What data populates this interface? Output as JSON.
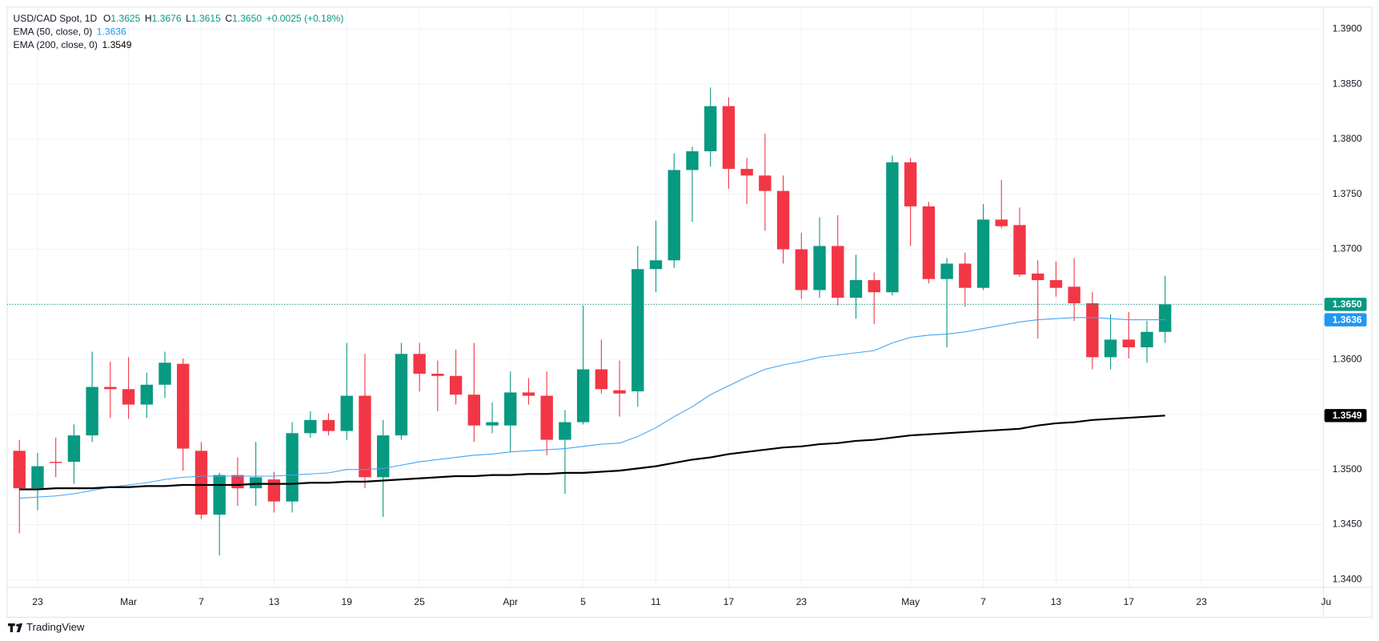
{
  "chart_data": {
    "type": "candlestick",
    "title": "USD/CAD Spot, 1D",
    "ohlc_header": [
      {
        "key": "O",
        "value": "1.3625"
      },
      {
        "key": "H",
        "value": "1.3676"
      },
      {
        "key": "L",
        "value": "1.3615"
      },
      {
        "key": "C",
        "value": "1.3650"
      }
    ],
    "change": "+0.0025 (+0.18%)",
    "up_color": "#089981",
    "down_color": "#f23645",
    "categories": [
      null,
      "23",
      null,
      null,
      null,
      null,
      "Mar",
      null,
      null,
      null,
      "7",
      null,
      null,
      null,
      "13",
      null,
      null,
      null,
      "19",
      null,
      null,
      null,
      "25",
      null,
      null,
      null,
      null,
      "Apr",
      null,
      null,
      null,
      "5",
      null,
      null,
      null,
      "11",
      null,
      null,
      null,
      "17",
      null,
      null,
      null,
      "23",
      null,
      null,
      null,
      null,
      null,
      "May",
      null,
      null,
      null,
      "7",
      null,
      null,
      null,
      "13",
      null,
      null,
      null,
      "17",
      null,
      null,
      null,
      "23",
      null,
      null,
      null,
      null,
      null,
      null,
      "Jun"
    ],
    "open": [
      1.3517,
      1.3483,
      1.3507,
      1.3507,
      1.3531,
      1.3575,
      1.3573,
      1.3559,
      1.3577,
      1.3596,
      1.3517,
      1.3459,
      1.3495,
      1.3483,
      1.3491,
      1.3471,
      1.3533,
      1.3545,
      1.3535,
      1.3567,
      1.3493,
      1.3531,
      1.3605,
      1.3587,
      1.3585,
      1.3568,
      1.354,
      1.354,
      1.357,
      1.3567,
      1.3527,
      1.3543,
      1.3591,
      1.3572,
      1.3571,
      1.3682,
      1.369,
      1.3772,
      1.3789,
      1.383,
      1.3773,
      1.3767,
      1.3753,
      1.37,
      1.3663,
      1.3703,
      1.3656,
      1.3672,
      1.3661,
      1.3779,
      1.3739,
      1.3673,
      1.3687,
      1.3665,
      1.3727,
      1.3722,
      1.3678,
      1.3672,
      1.3666,
      1.3651,
      1.3602,
      1.3618,
      1.3611,
      1.3625,
      null,
      null,
      null,
      null,
      null,
      null,
      null,
      null,
      null
    ],
    "high": [
      1.3527,
      1.3515,
      1.3529,
      1.3541,
      1.3607,
      1.3598,
      1.3602,
      1.3588,
      1.3607,
      1.3601,
      1.3525,
      1.3497,
      1.3511,
      1.3525,
      1.3498,
      1.3543,
      1.3553,
      1.3551,
      1.3615,
      1.3605,
      1.3545,
      1.3615,
      1.3615,
      1.3599,
      1.3609,
      1.3615,
      1.3561,
      1.3589,
      1.3583,
      1.3589,
      1.3554,
      1.3649,
      1.3618,
      1.3599,
      1.3703,
      1.3726,
      1.3787,
      1.3793,
      1.3847,
      1.3838,
      1.3783,
      1.3805,
      1.3767,
      1.3715,
      1.3729,
      1.3731,
      1.3695,
      1.3679,
      1.3785,
      1.3783,
      1.3743,
      1.3692,
      1.3697,
      1.3741,
      1.3763,
      1.3738,
      1.369,
      1.3689,
      1.3692,
      1.3661,
      1.3641,
      1.3643,
      1.3635,
      1.3676,
      null,
      null,
      null,
      null,
      null,
      null,
      null,
      null,
      null
    ],
    "low": [
      1.3442,
      1.3463,
      1.3493,
      1.3487,
      1.3525,
      1.3547,
      1.3546,
      1.3547,
      1.3565,
      1.3499,
      1.3455,
      1.3422,
      1.3467,
      1.3467,
      1.3461,
      1.3461,
      1.3529,
      1.3531,
      1.3527,
      1.3483,
      1.3457,
      1.3527,
      1.3571,
      1.3553,
      1.3559,
      1.3525,
      1.3533,
      1.3516,
      1.3559,
      1.3513,
      1.3478,
      1.3541,
      1.3569,
      1.3548,
      1.3557,
      1.3661,
      1.3683,
      1.3725,
      1.3775,
      1.3755,
      1.3741,
      1.3717,
      1.3687,
      1.3655,
      1.3656,
      1.3649,
      1.3637,
      1.3632,
      1.3658,
      1.3703,
      1.3669,
      1.3611,
      1.3648,
      1.3663,
      1.3719,
      1.3675,
      1.3619,
      1.3657,
      1.3635,
      1.3591,
      1.3591,
      1.3601,
      1.3597,
      1.3615,
      null,
      null,
      null,
      null,
      null,
      null,
      null,
      null,
      null
    ],
    "close": [
      1.3483,
      1.3503,
      1.3506,
      1.3531,
      1.3575,
      1.3573,
      1.3559,
      1.3577,
      1.3597,
      1.3519,
      1.3459,
      1.3495,
      1.3483,
      1.3493,
      1.3471,
      1.3533,
      1.3545,
      1.3535,
      1.3567,
      1.3493,
      1.3531,
      1.3605,
      1.3587,
      1.3585,
      1.3568,
      1.354,
      1.3543,
      1.357,
      1.3567,
      1.3527,
      1.3543,
      1.3591,
      1.3573,
      1.3569,
      1.3682,
      1.369,
      1.3772,
      1.3789,
      1.383,
      1.3773,
      1.3767,
      1.3753,
      1.37,
      1.3663,
      1.3703,
      1.3656,
      1.3672,
      1.3661,
      1.3779,
      1.3739,
      1.3673,
      1.3687,
      1.3665,
      1.3727,
      1.3721,
      1.3677,
      1.3672,
      1.3665,
      1.3651,
      1.3602,
      1.3618,
      1.3611,
      1.3625,
      1.365,
      null,
      null,
      null,
      null,
      null,
      null,
      null,
      null,
      null
    ],
    "overlays": [
      {
        "name": "EMA (50, close, 0)",
        "last_label": "1.3636",
        "color": "#42a5f5",
        "width": 1,
        "values": [
          1.3474,
          1.3475,
          1.3476,
          1.3478,
          1.3481,
          1.3484,
          1.3486,
          1.3488,
          1.3491,
          1.3493,
          1.3494,
          1.3494,
          1.3494,
          1.3494,
          1.3494,
          1.3495,
          1.3496,
          1.3497,
          1.35,
          1.35,
          1.3501,
          1.3504,
          1.3507,
          1.3509,
          1.3511,
          1.3513,
          1.3514,
          1.3516,
          1.3517,
          1.3518,
          1.3519,
          1.3521,
          1.3523,
          1.3524,
          1.353,
          1.3538,
          1.3548,
          1.3557,
          1.3568,
          1.3576,
          1.3584,
          1.3591,
          1.3595,
          1.3598,
          1.3602,
          1.3604,
          1.3606,
          1.3608,
          1.3615,
          1.362,
          1.3622,
          1.3623,
          1.3625,
          1.3628,
          1.3631,
          1.3634,
          1.3636,
          1.3637,
          1.3638,
          1.3638,
          1.3637,
          1.3636,
          1.3636,
          1.3636,
          null,
          null,
          null,
          null,
          null,
          null,
          null,
          null,
          null
        ]
      },
      {
        "name": "EMA (200, close, 0)",
        "last_label": "1.3549",
        "color": "#000000",
        "width": 2,
        "values": [
          1.3482,
          1.3482,
          1.3483,
          1.3483,
          1.3483,
          1.3484,
          1.3484,
          1.3485,
          1.3485,
          1.3486,
          1.3486,
          1.3486,
          1.3486,
          1.3487,
          1.3487,
          1.3487,
          1.3488,
          1.3488,
          1.3489,
          1.3489,
          1.349,
          1.3491,
          1.3492,
          1.3493,
          1.3494,
          1.3494,
          1.3495,
          1.3495,
          1.3496,
          1.3496,
          1.3497,
          1.3497,
          1.3498,
          1.3499,
          1.3501,
          1.3503,
          1.3506,
          1.3509,
          1.3511,
          1.3514,
          1.3516,
          1.3518,
          1.352,
          1.3521,
          1.3523,
          1.3524,
          1.3526,
          1.3527,
          1.3529,
          1.3531,
          1.3532,
          1.3533,
          1.3534,
          1.3535,
          1.3536,
          1.3537,
          1.354,
          1.3542,
          1.3543,
          1.3545,
          1.3546,
          1.3547,
          1.3548,
          1.3549,
          null,
          null,
          null,
          null,
          null,
          null,
          null,
          null,
          null
        ]
      }
    ],
    "price_labels": [
      {
        "value": 1.365,
        "label": "1.3650",
        "color": "#089981",
        "line": true
      },
      {
        "value": 1.3636,
        "label": "1.3636",
        "color": "#2196f3",
        "line": false
      },
      {
        "value": 1.3549,
        "label": "1.3549",
        "color": "#000000",
        "line": false
      }
    ],
    "ylim": [
      1.3393,
      1.392
    ],
    "yticks": [
      {
        "value": 1.34,
        "label": "1.3400"
      },
      {
        "value": 1.345,
        "label": "1.3450"
      },
      {
        "value": 1.35,
        "label": "1.3500"
      },
      {
        "value": 1.355,
        "label": "1.3550"
      },
      {
        "value": 1.36,
        "label": "1.3600"
      },
      {
        "value": 1.365,
        "label": "1.3650"
      },
      {
        "value": 1.37,
        "label": "1.3700"
      },
      {
        "value": 1.375,
        "label": "1.3750"
      },
      {
        "value": 1.38,
        "label": "1.3800"
      },
      {
        "value": 1.385,
        "label": "1.3850"
      },
      {
        "value": 1.39,
        "label": "1.3900"
      }
    ],
    "grid": true,
    "brand": "TradingView"
  }
}
